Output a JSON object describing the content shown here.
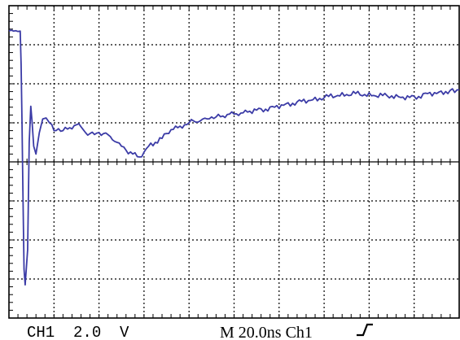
{
  "colors": {
    "background": "#ffffff",
    "grid": "#000000",
    "frame": "#000000",
    "trace": "#3b3ba6"
  },
  "readouts": {
    "channel": "CH1  2.0  V",
    "timebase": "M 20.0ns Ch1"
  },
  "icons": {
    "trigger": "rising-edge-trigger-icon"
  },
  "chart_data": {
    "type": "line",
    "title": "",
    "xlabel": "",
    "ylabel": "",
    "xlim": [
      0,
      200
    ],
    "ylim": [
      -8,
      8
    ],
    "x_div_ns": 20,
    "y_div_V": 2,
    "grid": true,
    "legend": "none",
    "series": [
      {
        "x": [
          0,
          1,
          2,
          3,
          4,
          5,
          5.4,
          5.8,
          6.2,
          6.7,
          7.2,
          8.3,
          9,
          9.7,
          10.3,
          11,
          12,
          13.5,
          15,
          16.5,
          18,
          20,
          22,
          24,
          27,
          30,
          32,
          34,
          36,
          38,
          40,
          42,
          45,
          48,
          50,
          52,
          55,
          58,
          60,
          62,
          65,
          68,
          70,
          72,
          75,
          78,
          80,
          82,
          85,
          88,
          90,
          92,
          95,
          98,
          100,
          103,
          106,
          110,
          114,
          118,
          122,
          126,
          130,
          134,
          138,
          142,
          146,
          150,
          154,
          158,
          162,
          166,
          170,
          174,
          178,
          182,
          186,
          190,
          194,
          200
        ],
        "y": [
          6.7,
          6.75,
          6.7,
          6.72,
          6.68,
          6.7,
          5.0,
          2.0,
          -1.5,
          -5.5,
          -6.3,
          -4.5,
          1.0,
          2.85,
          2.0,
          0.8,
          0.4,
          1.5,
          2.2,
          2.25,
          2.0,
          1.6,
          1.7,
          1.6,
          1.75,
          1.9,
          1.8,
          1.5,
          1.45,
          1.4,
          1.5,
          1.45,
          1.3,
          1.0,
          0.8,
          0.6,
          0.4,
          0.25,
          0.5,
          0.8,
          1.0,
          1.2,
          1.45,
          1.65,
          1.75,
          1.9,
          2.0,
          2.1,
          2.1,
          2.2,
          2.3,
          2.3,
          2.35,
          2.45,
          2.45,
          2.5,
          2.55,
          2.65,
          2.7,
          2.8,
          2.9,
          3.0,
          3.1,
          3.15,
          3.25,
          3.35,
          3.4,
          3.45,
          3.5,
          3.45,
          3.4,
          3.4,
          3.38,
          3.3,
          3.3,
          3.35,
          3.5,
          3.5,
          3.6,
          3.7
        ]
      }
    ]
  }
}
